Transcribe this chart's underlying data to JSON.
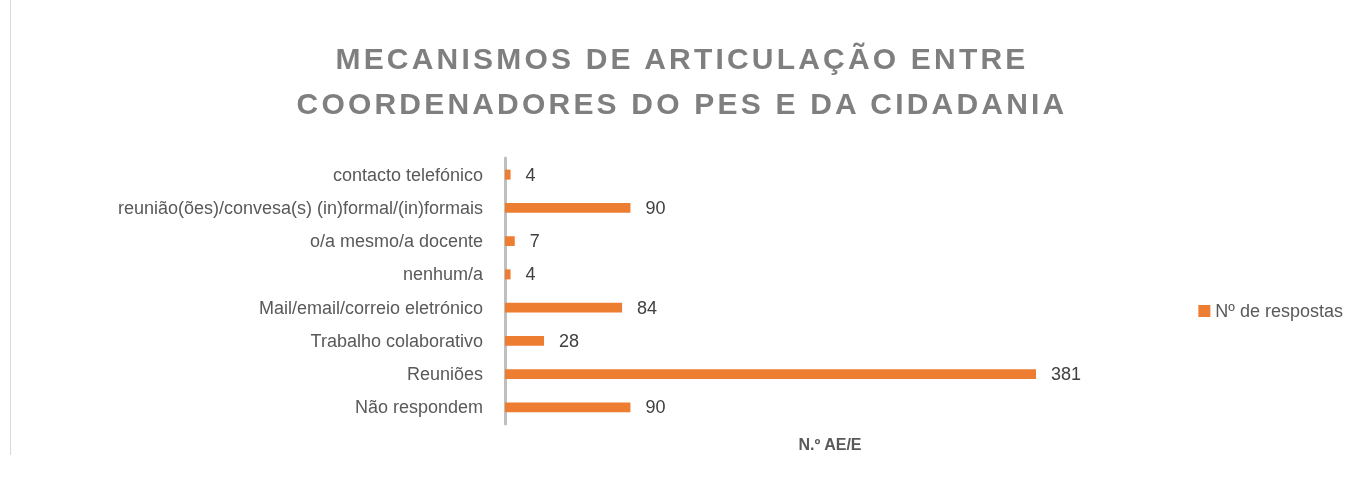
{
  "chart_data": {
    "type": "bar",
    "orientation": "horizontal",
    "title": "MECANISMOS DE ARTICULAÇÃO ENTRE COORDENADORES DO PES E DA CIDADANIA",
    "xlabel": "N.º AE/E",
    "categories": [
      "contacto telefónico",
      "reunião(ões)/convesa(s) (in)formal/(in)formais",
      "o/a mesmo/a docente",
      "nenhum/a",
      "Mail/email/correio eletrónico",
      "Trabalho colaborativo",
      "Reuniões",
      "Não respondem"
    ],
    "series": [
      {
        "name": "Nº de respostas",
        "color": "#ed7d31",
        "values": [
          4,
          90,
          7,
          4,
          84,
          28,
          381,
          90
        ]
      }
    ],
    "data_labels": true,
    "legend": "right",
    "tick_labels": "y"
  }
}
